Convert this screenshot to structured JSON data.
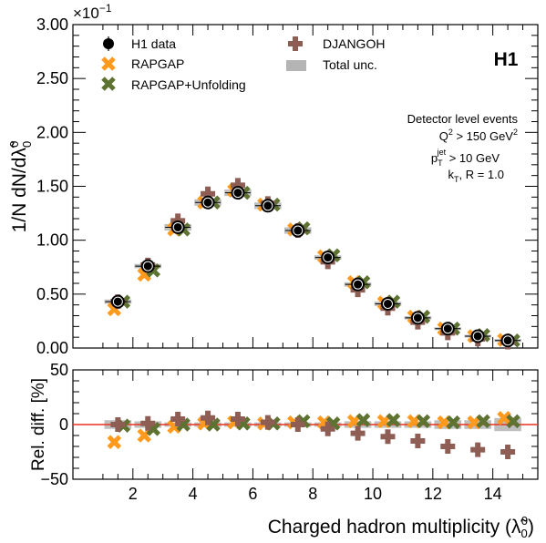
{
  "chart_data": [
    {
      "type": "scatter",
      "panel": "main",
      "ylabel_main": "1/N dN/d",
      "ylabel_symbol": "λ̃",
      "ylabel_sub": "0",
      "ylabel_sup": "0",
      "scale_label": "×10",
      "scale_exp": "−1",
      "ylim": [
        0,
        3.0
      ],
      "xlim": [
        0,
        15.5
      ],
      "yticks": [
        "0.00",
        "0.50",
        "1.00",
        "1.50",
        "2.00",
        "2.50",
        "3.00"
      ],
      "ytick_values": [
        0,
        0.5,
        1.0,
        1.5,
        2.0,
        2.5,
        3.0
      ],
      "experiment_label": "H1",
      "annotations": {
        "line1": "Detector level events",
        "line2_main": "Q",
        "line2_sup": "2",
        "line2_rest": " > 150 GeV",
        "line2_sup2": "2",
        "line3_main": "p",
        "line3_sub": "T",
        "line3_sup": "jet",
        "line3_rest": " > 10 GeV",
        "line4_main": "k",
        "line4_sub": "T",
        "line4_rest": ", R = 1.0"
      },
      "x": [
        1.5,
        2.5,
        3.5,
        4.5,
        5.5,
        6.5,
        7.5,
        8.5,
        9.5,
        10.5,
        11.5,
        12.5,
        13.5,
        14.5
      ],
      "series": [
        {
          "name": "H1 data",
          "color": "#000000",
          "marker": "circle",
          "values": [
            0.43,
            0.76,
            1.12,
            1.35,
            1.44,
            1.32,
            1.09,
            0.84,
            0.59,
            0.41,
            0.28,
            0.18,
            0.11,
            0.07
          ]
        },
        {
          "name": "RAPGAP",
          "color": "#ff9a1f",
          "marker": "x",
          "values": [
            0.36,
            0.68,
            1.1,
            1.35,
            1.46,
            1.33,
            1.1,
            0.85,
            0.61,
            0.42,
            0.29,
            0.18,
            0.11,
            0.075
          ]
        },
        {
          "name": "RAPGAP+Unfolding",
          "color": "#5e7232",
          "marker": "x",
          "values": [
            0.43,
            0.72,
            1.1,
            1.35,
            1.44,
            1.33,
            1.11,
            0.86,
            0.61,
            0.43,
            0.29,
            0.18,
            0.12,
            0.07
          ]
        },
        {
          "name": "DJANGOH",
          "color": "#8e5e55",
          "marker": "plus",
          "values": [
            0.43,
            0.77,
            1.18,
            1.43,
            1.51,
            1.34,
            1.09,
            0.8,
            0.54,
            0.37,
            0.24,
            0.14,
            0.085,
            0.055
          ]
        }
      ],
      "uncertainty": {
        "name": "Total unc.",
        "color": "#b4b4b4",
        "values": [
          0.02,
          0.02,
          0.03,
          0.03,
          0.03,
          0.03,
          0.03,
          0.02,
          0.02,
          0.02,
          0.015,
          0.01,
          0.01,
          0.008
        ]
      }
    },
    {
      "type": "scatter",
      "panel": "ratio",
      "ylabel": "Rel. diff. [%]",
      "xlabel_main": "Charged hadron multiplicity (",
      "xlabel_symbol": "λ̃",
      "xlabel_sub": "0",
      "xlabel_sup": "0",
      "xlabel_end": ")",
      "ylim": [
        -50,
        50
      ],
      "xlim": [
        0,
        15.5
      ],
      "yticks": [
        "50",
        "0",
        "−50"
      ],
      "ytick_values": [
        50,
        0,
        -50
      ],
      "xticks": [
        "2",
        "4",
        "6",
        "8",
        "10",
        "12",
        "14"
      ],
      "xtick_values": [
        2,
        4,
        6,
        8,
        10,
        12,
        14
      ],
      "reference_line": {
        "value": 0,
        "color": "#e8321e"
      },
      "x": [
        1.5,
        2.5,
        3.5,
        4.5,
        5.5,
        6.5,
        7.5,
        8.5,
        9.5,
        10.5,
        11.5,
        12.5,
        13.5,
        14.5
      ],
      "series": [
        {
          "name": "RAPGAP",
          "color": "#ff9a1f",
          "marker": "x",
          "values": [
            -16,
            -10,
            -2,
            1,
            2,
            1,
            2,
            2,
            3,
            3,
            3,
            2,
            2,
            6
          ]
        },
        {
          "name": "RAPGAP+Unfolding",
          "color": "#5e7232",
          "marker": "x",
          "values": [
            -1,
            -4,
            0,
            0,
            1,
            1,
            3,
            1,
            4,
            4,
            3,
            2,
            3,
            3
          ]
        },
        {
          "name": "DJANGOH",
          "color": "#8e5e55",
          "marker": "plus",
          "values": [
            0,
            1,
            5,
            6,
            5,
            2,
            0,
            -4,
            -8,
            -11,
            -15,
            -20,
            -23,
            -25
          ]
        }
      ],
      "uncertainty": {
        "name": "Total unc.",
        "color": "#b4b4b4",
        "values": [
          4,
          3,
          2,
          2,
          2,
          2,
          2,
          2,
          3,
          3,
          3,
          4,
          4,
          6
        ]
      }
    }
  ]
}
